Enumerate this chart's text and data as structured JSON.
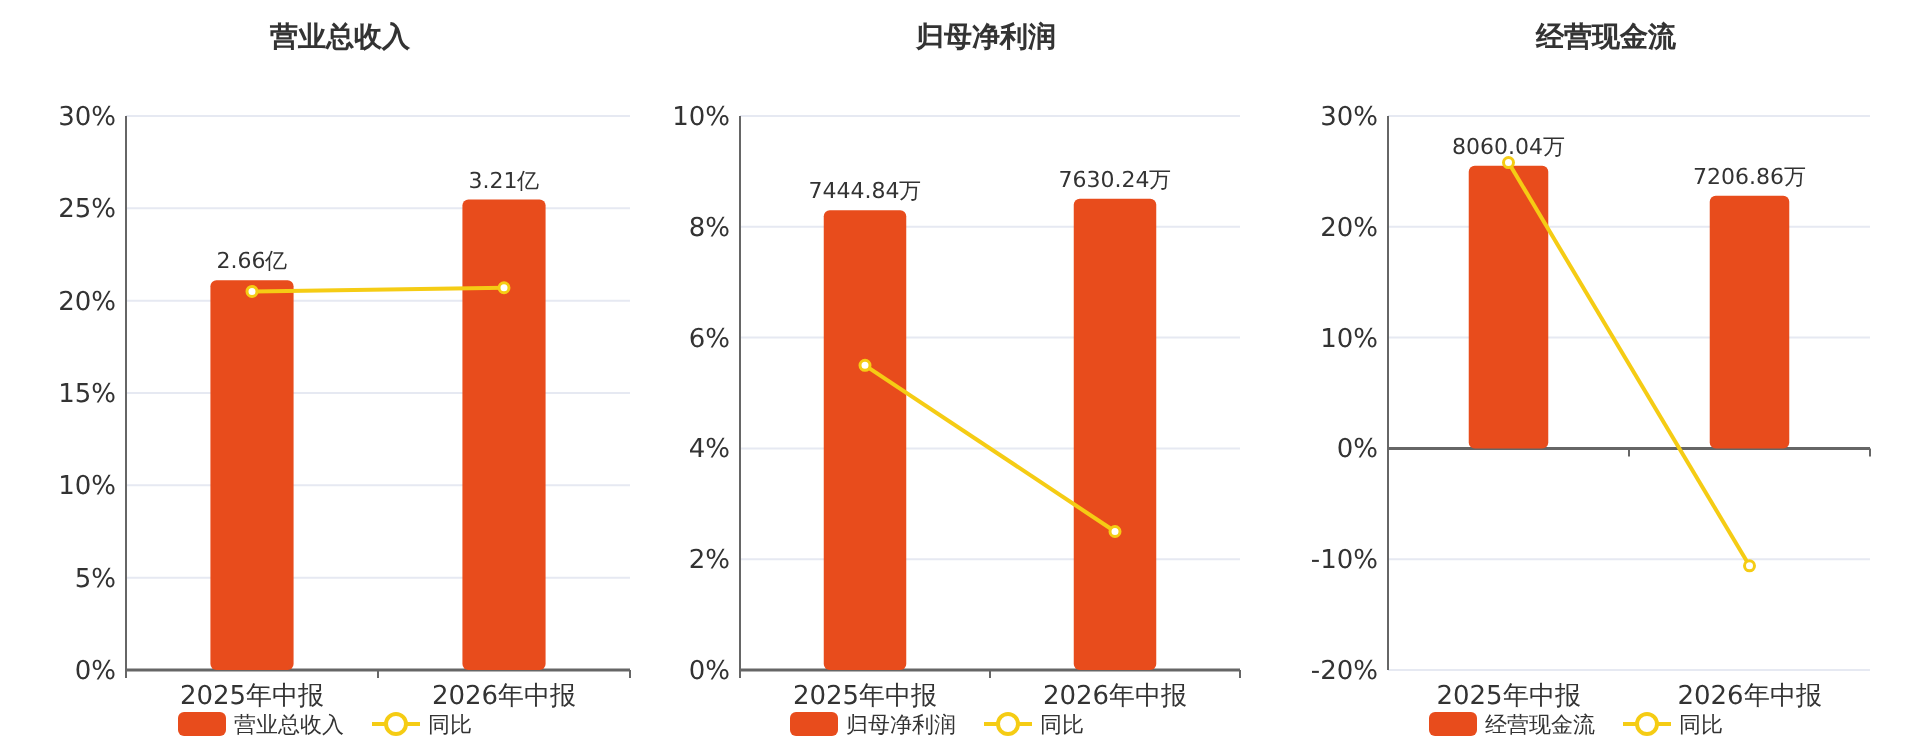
{
  "chart_data": [
    {
      "type": "bar",
      "title": "营业总收入",
      "categories": [
        "2025年中报",
        "2026年中报"
      ],
      "ylim": [
        0,
        30
      ],
      "yticks": [
        {
          "value": 0,
          "label": "0%"
        },
        {
          "value": 5,
          "label": "5%"
        },
        {
          "value": 10,
          "label": "10%"
        },
        {
          "value": 15,
          "label": "15%"
        },
        {
          "value": 20,
          "label": "20%"
        },
        {
          "value": 25,
          "label": "25%"
        },
        {
          "value": 30,
          "label": "30%"
        }
      ],
      "y2lim": [
        0,
        3.78
      ],
      "grid": "y",
      "legend": "bottom",
      "series": [
        {
          "name": "营业总收入",
          "axis": "y2",
          "color": "#e84c1c",
          "values": [
            2.66,
            3.21
          ],
          "value_labels": [
            "2.66亿",
            "3.21亿"
          ]
        },
        {
          "name": "同比",
          "type": "line",
          "color": "#f5cc14",
          "marker": "circle",
          "values": [
            20.5,
            20.7
          ]
        }
      ]
    },
    {
      "type": "bar",
      "title": "归母净利润",
      "categories": [
        "2025年中报",
        "2026年中报"
      ],
      "ylim": [
        0,
        10
      ],
      "yticks": [
        {
          "value": 0,
          "label": "0%"
        },
        {
          "value": 2,
          "label": "2%"
        },
        {
          "value": 4,
          "label": "4%"
        },
        {
          "value": 6,
          "label": "6%"
        },
        {
          "value": 8,
          "label": "8%"
        },
        {
          "value": 10,
          "label": "10%"
        }
      ],
      "y2lim": [
        0,
        8970
      ],
      "grid": "y",
      "legend": "bottom",
      "series": [
        {
          "name": "归母净利润",
          "axis": "y2",
          "color": "#e84c1c",
          "values": [
            7444.84,
            7630.24
          ],
          "value_labels": [
            "7444.84万",
            "7630.24万"
          ]
        },
        {
          "name": "同比",
          "type": "line",
          "color": "#f5cc14",
          "marker": "circle",
          "values": [
            5.5,
            2.5
          ]
        }
      ]
    },
    {
      "type": "bar",
      "title": "经营现金流",
      "categories": [
        "2025年中报",
        "2026年中报"
      ],
      "ylim": [
        -20,
        30
      ],
      "yticks": [
        {
          "value": -20,
          "label": "-20%"
        },
        {
          "value": -10,
          "label": "-10%"
        },
        {
          "value": 0,
          "label": "0%"
        },
        {
          "value": 10,
          "label": "10%"
        },
        {
          "value": 20,
          "label": "20%"
        },
        {
          "value": 30,
          "label": "30%"
        }
      ],
      "y2lim": [
        -6320,
        9480
      ],
      "grid": "y",
      "legend": "bottom",
      "series": [
        {
          "name": "经营现金流",
          "axis": "y2",
          "color": "#e84c1c",
          "values": [
            8060.04,
            7206.86
          ],
          "value_labels": [
            "8060.04万",
            "7206.86万"
          ]
        },
        {
          "name": "同比",
          "type": "line",
          "color": "#f5cc14",
          "marker": "circle",
          "values": [
            25.8,
            -10.6
          ]
        }
      ]
    }
  ]
}
